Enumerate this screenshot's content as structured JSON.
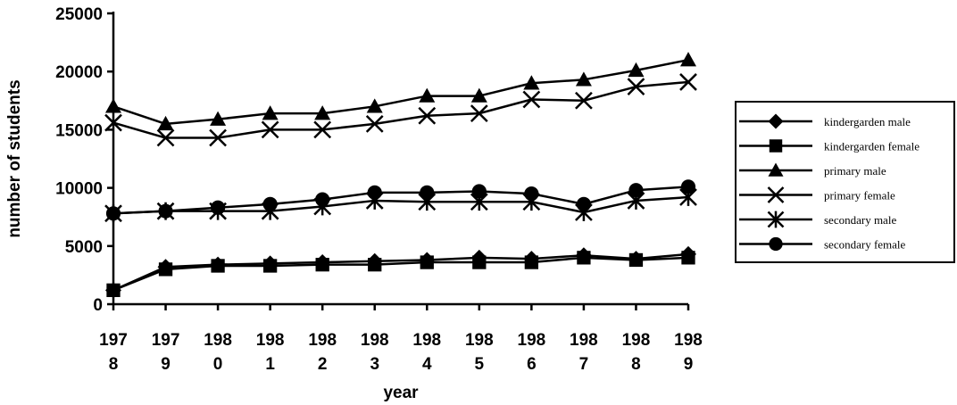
{
  "chart_data": {
    "type": "line",
    "title": "",
    "xlabel": "year",
    "ylabel": "number of students",
    "ylim": [
      0,
      25000
    ],
    "yticks": [
      0,
      5000,
      10000,
      15000,
      20000,
      25000
    ],
    "categories": [
      "1978",
      "1979",
      "1980",
      "1981",
      "1982",
      "1983",
      "1984",
      "1985",
      "1986",
      "1987",
      "1988",
      "1989"
    ],
    "category_label_lines": [
      [
        "197",
        "8"
      ],
      [
        "197",
        "9"
      ],
      [
        "198",
        "0"
      ],
      [
        "198",
        "1"
      ],
      [
        "198",
        "2"
      ],
      [
        "198",
        "3"
      ],
      [
        "198",
        "4"
      ],
      [
        "198",
        "5"
      ],
      [
        "198",
        "6"
      ],
      [
        "198",
        "7"
      ],
      [
        "198",
        "8"
      ],
      [
        "198",
        "9"
      ]
    ],
    "grid": false,
    "legend_position": "right",
    "series": [
      {
        "name": "kindergarden male",
        "marker": "diamond",
        "values": [
          1200,
          3200,
          3400,
          3500,
          3600,
          3700,
          3800,
          4000,
          3900,
          4200,
          3900,
          4300
        ]
      },
      {
        "name": "kindergarden female",
        "marker": "square",
        "values": [
          1200,
          3000,
          3300,
          3300,
          3400,
          3400,
          3600,
          3600,
          3600,
          4000,
          3800,
          4000
        ]
      },
      {
        "name": "primary male",
        "marker": "triangle",
        "values": [
          17000,
          15500,
          15900,
          16400,
          16400,
          17000,
          17900,
          17900,
          19000,
          19300,
          20100,
          21000
        ]
      },
      {
        "name": "primary female",
        "marker": "x",
        "values": [
          15600,
          14300,
          14300,
          15000,
          15000,
          15500,
          16200,
          16400,
          17600,
          17500,
          18700,
          19100
        ]
      },
      {
        "name": "secondary male",
        "marker": "star",
        "values": [
          7800,
          8000,
          8000,
          8000,
          8400,
          8900,
          8800,
          8800,
          8800,
          7900,
          8900,
          9200
        ]
      },
      {
        "name": "secondary female",
        "marker": "circle",
        "values": [
          7800,
          8000,
          8300,
          8600,
          9000,
          9600,
          9600,
          9700,
          9500,
          8600,
          9800,
          10100
        ]
      }
    ]
  }
}
